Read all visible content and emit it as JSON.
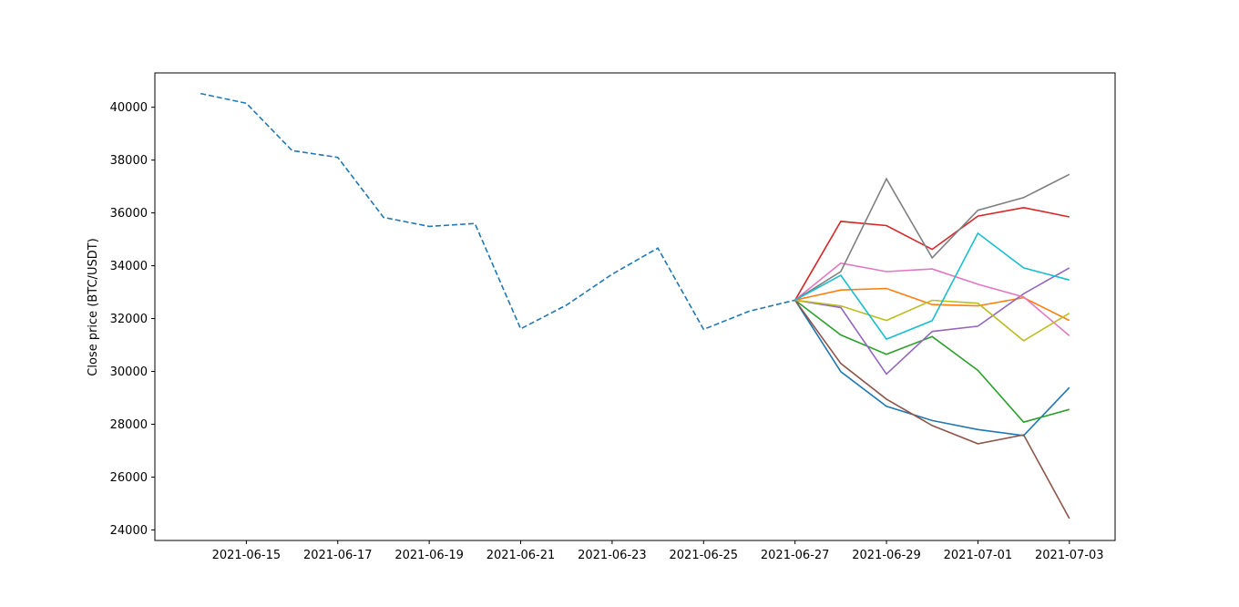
{
  "chart_data": {
    "type": "line",
    "title": "",
    "xlabel": "",
    "ylabel": "Close price (BTC/USDT)",
    "x_tick_labels": [
      "2021-06-15",
      "2021-06-17",
      "2021-06-19",
      "2021-06-21",
      "2021-06-23",
      "2021-06-25",
      "2021-06-27",
      "2021-06-29",
      "2021-07-01",
      "2021-07-03"
    ],
    "y_tick_values": [
      24000,
      26000,
      28000,
      30000,
      32000,
      34000,
      36000,
      38000,
      40000
    ],
    "x_range": [
      "2021-06-13",
      "2021-07-04"
    ],
    "ylim": [
      23600,
      41300
    ],
    "grid": false,
    "legend": "none",
    "history": {
      "color": "#1f77b4",
      "style": "dashed",
      "x": [
        "2021-06-14",
        "2021-06-15",
        "2021-06-16",
        "2021-06-17",
        "2021-06-18",
        "2021-06-19",
        "2021-06-20",
        "2021-06-21",
        "2021-06-22",
        "2021-06-23",
        "2021-06-24",
        "2021-06-25",
        "2021-06-26",
        "2021-06-27"
      ],
      "values": [
        40520,
        40150,
        38360,
        38100,
        35830,
        35490,
        35600,
        31610,
        32510,
        33680,
        34670,
        31590,
        32280,
        32700
      ]
    },
    "forecast_x": [
      "2021-06-27",
      "2021-06-28",
      "2021-06-29",
      "2021-06-30",
      "2021-07-01",
      "2021-07-02",
      "2021-07-03"
    ],
    "series": [
      {
        "color": "#1f77b4",
        "values": [
          32700,
          29990,
          28680,
          28140,
          27800,
          27570,
          29390
        ]
      },
      {
        "color": "#ff7f0e",
        "values": [
          32700,
          33080,
          33140,
          32530,
          32480,
          32790,
          31930
        ]
      },
      {
        "color": "#2ca02c",
        "values": [
          32700,
          31380,
          30650,
          31320,
          30040,
          28080,
          28560
        ]
      },
      {
        "color": "#d62728",
        "values": [
          32700,
          35680,
          35520,
          34620,
          35880,
          36200,
          35850
        ]
      },
      {
        "color": "#9467bd",
        "values": [
          32700,
          32420,
          29900,
          31510,
          31710,
          32940,
          33920
        ]
      },
      {
        "color": "#8c564b",
        "values": [
          32700,
          30300,
          28950,
          27950,
          27260,
          27600,
          24430
        ]
      },
      {
        "color": "#e377c2",
        "values": [
          32700,
          34100,
          33780,
          33880,
          33300,
          32820,
          31350
        ]
      },
      {
        "color": "#7f7f7f",
        "values": [
          32700,
          33780,
          37290,
          34300,
          36100,
          36580,
          37460
        ]
      },
      {
        "color": "#bcbd22",
        "values": [
          32700,
          32480,
          31930,
          32690,
          32580,
          31160,
          32200
        ]
      },
      {
        "color": "#17becf",
        "values": [
          32700,
          33640,
          31220,
          31920,
          35230,
          33920,
          33460
        ]
      }
    ]
  }
}
